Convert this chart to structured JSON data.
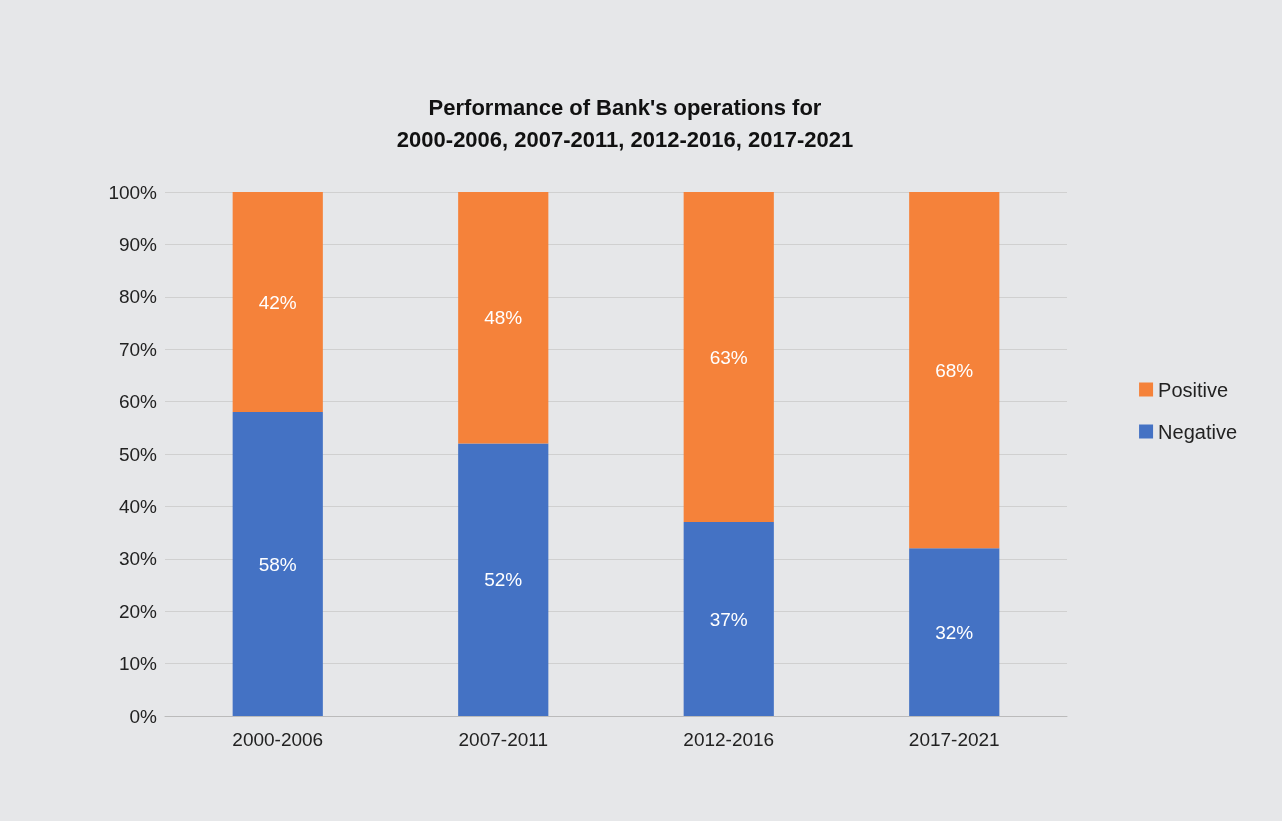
{
  "chart_data": {
    "type": "bar",
    "title": "Performance of Bank's operations for\n2000-2006, 2007-2011, 2012-2016, 2017-2021",
    "categories": [
      "2000-2006",
      "2007-2011",
      "2012-2016",
      "2017-2021"
    ],
    "stacked": true,
    "series": [
      {
        "name": "Negative",
        "color": "#4472c4",
        "values": [
          58,
          52,
          37,
          32
        ],
        "value_labels": [
          "58%",
          "52%",
          "37%",
          "32%"
        ]
      },
      {
        "name": "Positive",
        "color": "#f5823a",
        "values": [
          42,
          48,
          63,
          68
        ],
        "value_labels": [
          "42%",
          "48%",
          "63%",
          "68%"
        ]
      }
    ],
    "ylim": [
      0,
      100
    ],
    "yticks": [
      {
        "value": 0,
        "label": "0%"
      },
      {
        "value": 10,
        "label": "10%"
      },
      {
        "value": 20,
        "label": "20%"
      },
      {
        "value": 30,
        "label": "30%"
      },
      {
        "value": 40,
        "label": "40%"
      },
      {
        "value": 50,
        "label": "50%"
      },
      {
        "value": 60,
        "label": "60%"
      },
      {
        "value": 70,
        "label": "70%"
      },
      {
        "value": 80,
        "label": "80%"
      },
      {
        "value": 90,
        "label": "90%"
      },
      {
        "value": 100,
        "label": "100%"
      }
    ],
    "grid": "y",
    "legend": "right"
  }
}
